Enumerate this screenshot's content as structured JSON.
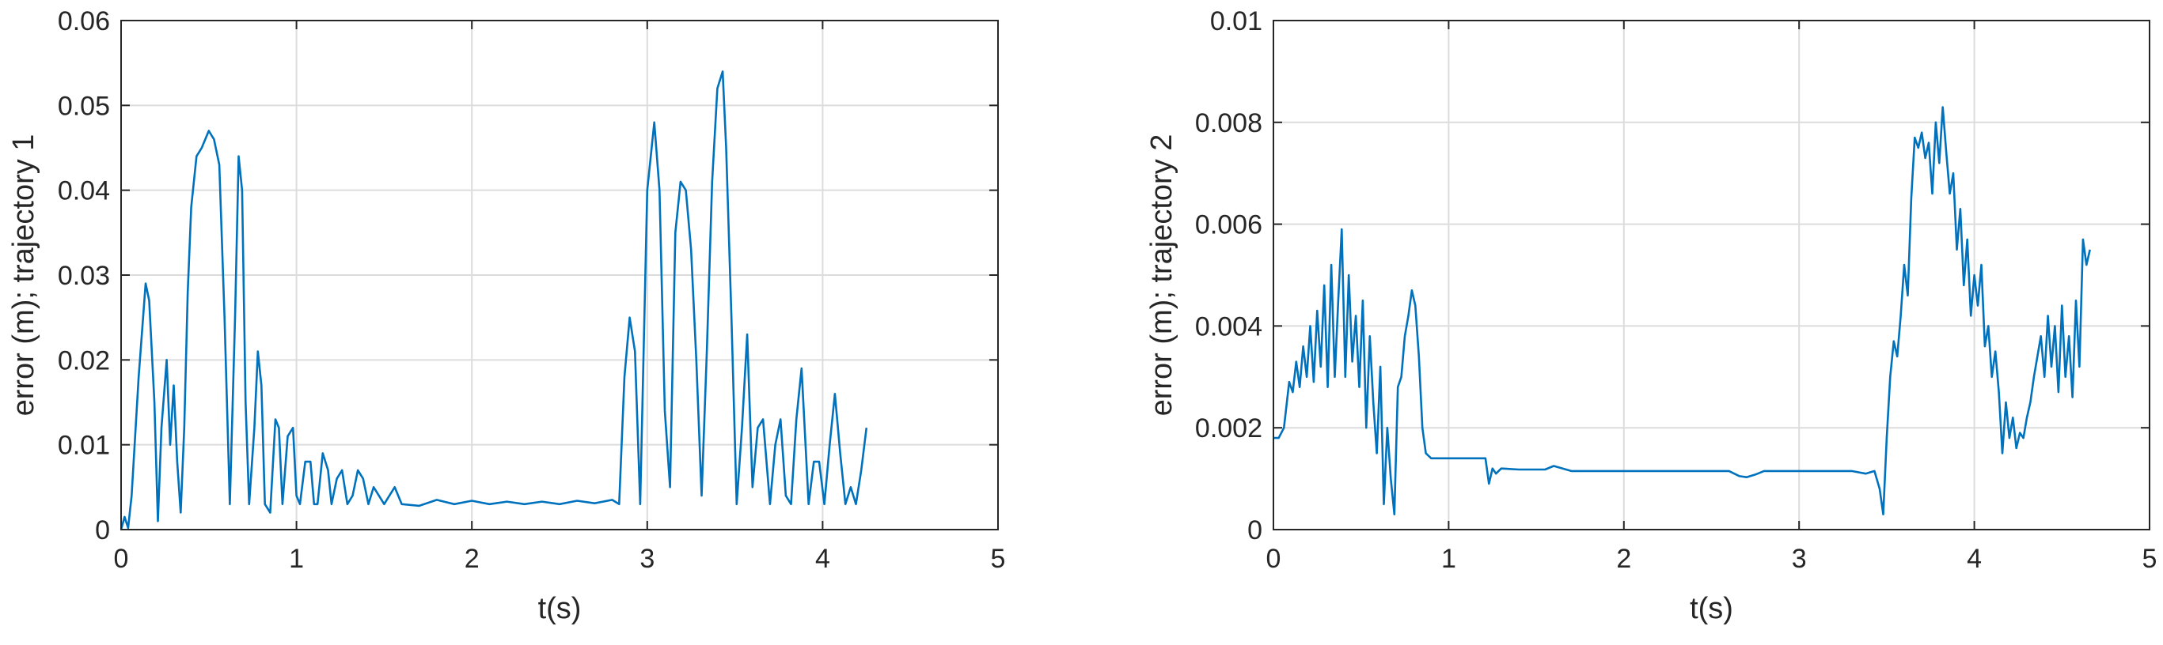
{
  "chart_data": [
    {
      "type": "line",
      "title": "",
      "xlabel": "t(s)",
      "ylabel": "error (m); trajectory 1",
      "xlim": [
        0,
        5
      ],
      "ylim": [
        0,
        0.06
      ],
      "xticks": [
        "0",
        "1",
        "2",
        "3",
        "4",
        "5"
      ],
      "yticks": [
        "0",
        "0.01",
        "0.02",
        "0.03",
        "0.04",
        "0.05",
        "0.06"
      ],
      "grid": true,
      "series": [
        {
          "color": "#0072BD",
          "x": [
            0,
            0.02,
            0.04,
            0.06,
            0.1,
            0.14,
            0.16,
            0.19,
            0.21,
            0.23,
            0.26,
            0.28,
            0.3,
            0.32,
            0.34,
            0.36,
            0.38,
            0.4,
            0.43,
            0.46,
            0.5,
            0.53,
            0.56,
            0.59,
            0.62,
            0.65,
            0.67,
            0.69,
            0.71,
            0.73,
            0.76,
            0.78,
            0.8,
            0.82,
            0.85,
            0.88,
            0.9,
            0.92,
            0.95,
            0.98,
            1.0,
            1.02,
            1.05,
            1.08,
            1.1,
            1.12,
            1.15,
            1.18,
            1.2,
            1.23,
            1.26,
            1.29,
            1.32,
            1.35,
            1.38,
            1.41,
            1.44,
            1.47,
            1.5,
            1.53,
            1.56,
            1.6,
            1.7,
            1.8,
            1.9,
            2.0,
            2.1,
            2.2,
            2.3,
            2.4,
            2.5,
            2.6,
            2.7,
            2.8,
            2.84,
            2.87,
            2.9,
            2.93,
            2.96,
            3.0,
            3.04,
            3.07,
            3.1,
            3.13,
            3.16,
            3.19,
            3.22,
            3.25,
            3.28,
            3.31,
            3.34,
            3.37,
            3.4,
            3.43,
            3.45,
            3.48,
            3.51,
            3.54,
            3.57,
            3.6,
            3.63,
            3.66,
            3.7,
            3.73,
            3.76,
            3.79,
            3.82,
            3.85,
            3.88,
            3.92,
            3.95,
            3.98,
            4.01,
            4.04,
            4.07,
            4.1,
            4.13,
            4.16,
            4.19,
            4.22,
            4.25
          ],
          "y": [
            0,
            0.0015,
            0.0002,
            0.004,
            0.018,
            0.029,
            0.027,
            0.015,
            0.001,
            0.012,
            0.02,
            0.01,
            0.017,
            0.008,
            0.002,
            0.012,
            0.028,
            0.038,
            0.044,
            0.045,
            0.047,
            0.046,
            0.043,
            0.025,
            0.003,
            0.025,
            0.044,
            0.04,
            0.015,
            0.003,
            0.012,
            0.021,
            0.017,
            0.003,
            0.002,
            0.013,
            0.012,
            0.003,
            0.011,
            0.012,
            0.004,
            0.003,
            0.008,
            0.008,
            0.003,
            0.003,
            0.009,
            0.007,
            0.003,
            0.006,
            0.007,
            0.003,
            0.004,
            0.007,
            0.006,
            0.003,
            0.005,
            0.004,
            0.003,
            0.004,
            0.005,
            0.003,
            0.0028,
            0.0035,
            0.003,
            0.0034,
            0.003,
            0.0033,
            0.003,
            0.0033,
            0.003,
            0.0034,
            0.0031,
            0.0035,
            0.003,
            0.018,
            0.025,
            0.021,
            0.003,
            0.04,
            0.048,
            0.04,
            0.014,
            0.005,
            0.035,
            0.041,
            0.04,
            0.033,
            0.02,
            0.004,
            0.021,
            0.041,
            0.052,
            0.054,
            0.045,
            0.025,
            0.003,
            0.012,
            0.023,
            0.005,
            0.012,
            0.013,
            0.003,
            0.01,
            0.013,
            0.004,
            0.003,
            0.013,
            0.019,
            0.003,
            0.008,
            0.008,
            0.003,
            0.01,
            0.016,
            0.009,
            0.003,
            0.005,
            0.003,
            0.007,
            0.012
          ]
        }
      ]
    },
    {
      "type": "line",
      "title": "",
      "xlabel": "t(s)",
      "ylabel": "error (m); trajectory 2",
      "xlim": [
        0,
        5
      ],
      "ylim": [
        0,
        0.01
      ],
      "xticks": [
        "0",
        "1",
        "2",
        "3",
        "4",
        "5"
      ],
      "yticks": [
        "0",
        "0.002",
        "0.004",
        "0.006",
        "0.008",
        "0.01"
      ],
      "grid": true,
      "series": [
        {
          "color": "#0072BD",
          "x": [
            0,
            0.03,
            0.06,
            0.09,
            0.11,
            0.13,
            0.15,
            0.17,
            0.19,
            0.21,
            0.23,
            0.25,
            0.27,
            0.29,
            0.31,
            0.33,
            0.35,
            0.37,
            0.39,
            0.41,
            0.43,
            0.45,
            0.47,
            0.49,
            0.51,
            0.53,
            0.55,
            0.57,
            0.59,
            0.61,
            0.63,
            0.65,
            0.67,
            0.69,
            0.71,
            0.73,
            0.75,
            0.77,
            0.79,
            0.81,
            0.83,
            0.85,
            0.87,
            0.9,
            1.0,
            1.1,
            1.21,
            1.23,
            1.25,
            1.27,
            1.3,
            1.4,
            1.55,
            1.6,
            1.7,
            2.0,
            2.3,
            2.6,
            2.66,
            2.7,
            2.75,
            2.8,
            3.0,
            3.2,
            3.3,
            3.38,
            3.43,
            3.46,
            3.48,
            3.5,
            3.52,
            3.54,
            3.56,
            3.58,
            3.6,
            3.62,
            3.64,
            3.66,
            3.68,
            3.7,
            3.72,
            3.74,
            3.76,
            3.78,
            3.8,
            3.82,
            3.84,
            3.86,
            3.88,
            3.9,
            3.92,
            3.94,
            3.96,
            3.98,
            4.0,
            4.02,
            4.04,
            4.06,
            4.08,
            4.1,
            4.12,
            4.14,
            4.16,
            4.18,
            4.2,
            4.22,
            4.24,
            4.26,
            4.28,
            4.3,
            4.32,
            4.34,
            4.36,
            4.38,
            4.4,
            4.42,
            4.44,
            4.46,
            4.48,
            4.5,
            4.52,
            4.54,
            4.56,
            4.58,
            4.6,
            4.62,
            4.64,
            4.66
          ],
          "y": [
            0.0018,
            0.0018,
            0.002,
            0.0029,
            0.0027,
            0.0033,
            0.0028,
            0.0036,
            0.003,
            0.004,
            0.0029,
            0.0043,
            0.0032,
            0.0048,
            0.0028,
            0.0052,
            0.003,
            0.0045,
            0.0059,
            0.003,
            0.005,
            0.0033,
            0.0042,
            0.0028,
            0.0045,
            0.002,
            0.0038,
            0.0025,
            0.0015,
            0.0032,
            0.0005,
            0.002,
            0.001,
            0.0003,
            0.0028,
            0.003,
            0.0038,
            0.0042,
            0.0047,
            0.0044,
            0.0034,
            0.002,
            0.0015,
            0.0014,
            0.0014,
            0.0014,
            0.0014,
            0.0009,
            0.0012,
            0.0011,
            0.0012,
            0.00118,
            0.00118,
            0.00125,
            0.00115,
            0.00115,
            0.00115,
            0.00115,
            0.00105,
            0.00103,
            0.00108,
            0.00115,
            0.00115,
            0.00115,
            0.00115,
            0.0011,
            0.00115,
            0.0008,
            0.0003,
            0.0018,
            0.003,
            0.0037,
            0.0034,
            0.0042,
            0.0052,
            0.0046,
            0.0065,
            0.0077,
            0.0075,
            0.0078,
            0.0073,
            0.0076,
            0.0066,
            0.008,
            0.0072,
            0.0083,
            0.0074,
            0.0066,
            0.007,
            0.0055,
            0.0063,
            0.0048,
            0.0057,
            0.0042,
            0.005,
            0.0044,
            0.0052,
            0.0036,
            0.004,
            0.003,
            0.0035,
            0.0027,
            0.0015,
            0.0025,
            0.0018,
            0.0022,
            0.0016,
            0.0019,
            0.0018,
            0.0022,
            0.0025,
            0.003,
            0.0034,
            0.0038,
            0.003,
            0.0042,
            0.0032,
            0.004,
            0.0027,
            0.0044,
            0.003,
            0.0038,
            0.0026,
            0.0045,
            0.0032,
            0.0057,
            0.0052,
            0.0055
          ]
        }
      ]
    }
  ]
}
